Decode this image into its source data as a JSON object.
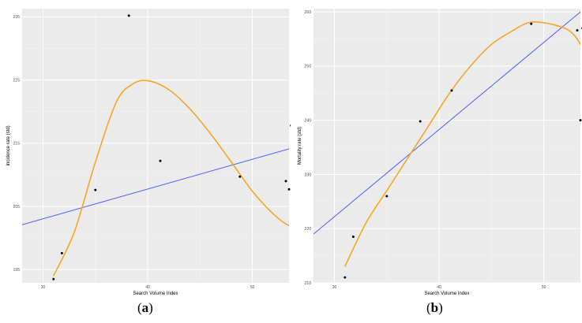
{
  "captions": [
    {
      "open": "(",
      "letter": "a",
      "close": ")"
    },
    {
      "open": "(",
      "letter": "b",
      "close": ")"
    }
  ],
  "colors": {
    "panel_bg": "#ebebeb",
    "grid_major": "#ffffff",
    "grid_minor": "#f4f4f4",
    "fit_curve": "#f5a623",
    "regression_line": "#4a5cff",
    "points": "#000000"
  },
  "chart_data": [
    {
      "type": "scatter",
      "title": "",
      "xlabel": "Search Volume Index",
      "ylabel": "Incidence rate (std)",
      "xlim": [
        28,
        53.5
      ],
      "ylim": [
        192.9,
        236.3
      ],
      "xticks": [
        30,
        40,
        50
      ],
      "yticks": [
        195,
        205,
        215,
        225,
        235
      ],
      "grid": true,
      "legend": "none",
      "points": {
        "x": [
          31.0,
          31.8,
          35.0,
          38.2,
          41.2,
          48.8,
          53.2,
          53.5,
          53.7
        ],
        "y": [
          193.5,
          197.6,
          207.6,
          235.2,
          212.2,
          209.7,
          209.0,
          207.7,
          217.8
        ]
      },
      "series": [
        {
          "type": "line",
          "x": [
            28.0,
            53.5
          ],
          "y": [
            202.1,
            214.1
          ]
        },
        {
          "type": "curve",
          "x": [
            31.0,
            33.0,
            35.0,
            37.0,
            38.5,
            40.0,
            42.0,
            44.0,
            46.0,
            48.0,
            50.0,
            52.0,
            53.5,
            54.0
          ],
          "y": [
            194.0,
            201.0,
            212.0,
            221.5,
            224.3,
            224.9,
            223.5,
            220.5,
            216.5,
            212.0,
            207.4,
            203.8,
            202.0,
            203.0
          ]
        }
      ]
    },
    {
      "type": "scatter",
      "title": "",
      "xlabel": "Search Volume Index",
      "ylabel": "Mortality rate (std)",
      "xlim": [
        28,
        53.5
      ],
      "ylim": [
        210,
        260.6
      ],
      "xticks": [
        30,
        40,
        50
      ],
      "yticks": [
        210,
        220,
        230,
        240,
        250,
        260
      ],
      "grid": true,
      "legend": "none",
      "points": {
        "x": [
          31.0,
          31.8,
          35.0,
          38.2,
          41.2,
          48.8,
          53.2,
          53.5,
          53.7
        ],
        "y": [
          211.0,
          218.5,
          226.0,
          239.8,
          245.5,
          257.8,
          256.6,
          240.0,
          257.0
        ]
      },
      "series": [
        {
          "type": "line",
          "x": [
            28.0,
            53.5
          ],
          "y": [
            219.0,
            260.0
          ]
        },
        {
          "type": "curve",
          "x": [
            31.0,
            33.0,
            35.0,
            37.0,
            39.0,
            41.0,
            43.0,
            45.0,
            47.0,
            48.5,
            50.0,
            52.0,
            53.0,
            53.8
          ],
          "y": [
            213.0,
            221.0,
            227.0,
            233.0,
            239.0,
            245.0,
            250.0,
            254.0,
            256.5,
            258.0,
            258.0,
            257.0,
            255.5,
            253.0
          ]
        }
      ]
    }
  ]
}
